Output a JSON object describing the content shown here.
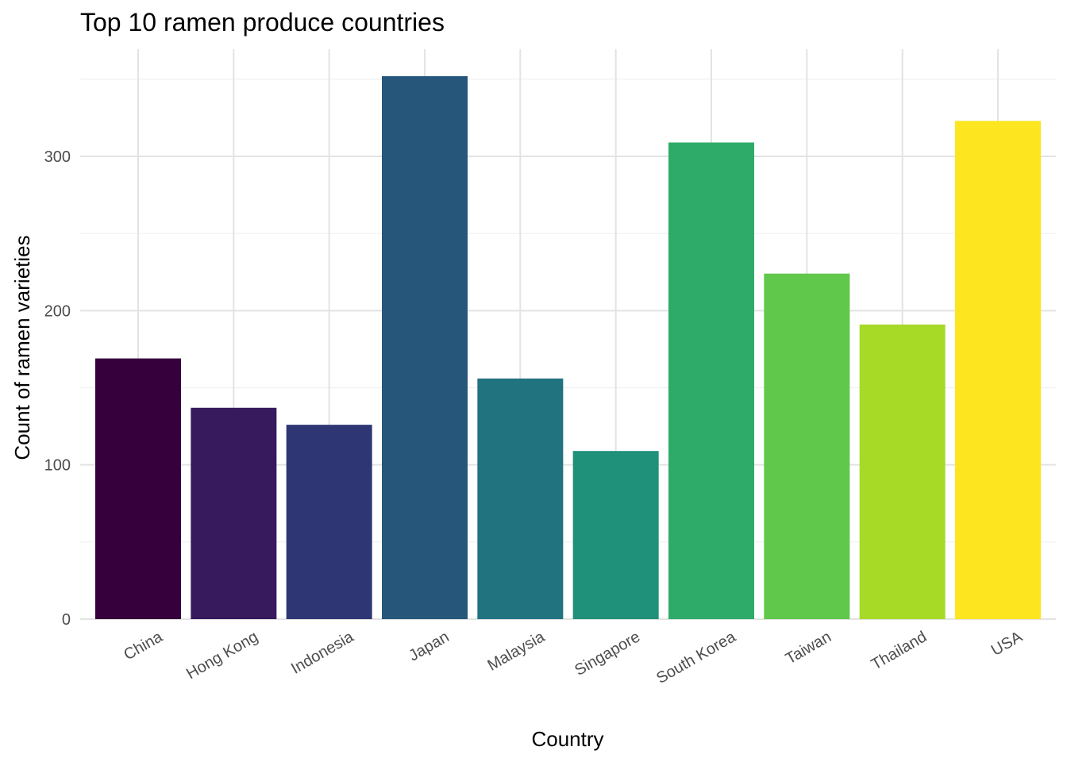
{
  "chart_data": {
    "type": "bar",
    "title": "Top 10 ramen produce countries",
    "xlabel": "Country",
    "ylabel": "Count of ramen varieties",
    "categories": [
      "China",
      "Hong Kong",
      "Indonesia",
      "Japan",
      "Malaysia",
      "Singapore",
      "South Korea",
      "Taiwan",
      "Thailand",
      "USA"
    ],
    "values": [
      169,
      137,
      126,
      352,
      156,
      109,
      309,
      224,
      191,
      323
    ],
    "colors": [
      "#35003c",
      "#37195e",
      "#2f3674",
      "#27567b",
      "#217380",
      "#1f907a",
      "#2fab69",
      "#60c84a",
      "#a6da27",
      "#fde520"
    ],
    "ylim": [
      0,
      370
    ],
    "yticks": [
      0,
      100,
      200,
      300
    ],
    "grid": true,
    "legend": "none"
  }
}
